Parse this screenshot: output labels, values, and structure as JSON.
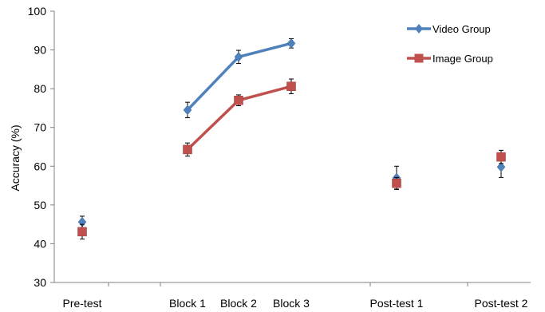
{
  "chart_data": {
    "type": "line",
    "title": "",
    "xlabel": "",
    "ylabel": "Accuracy (%)",
    "ylim": [
      30,
      100
    ],
    "yticks": [
      30,
      40,
      50,
      60,
      70,
      80,
      90,
      100
    ],
    "categories": [
      "Pre-test",
      "Block 1",
      "Block 2",
      "Block 3",
      "Post-test 1",
      "Post-test 2"
    ],
    "connected_categories": [
      "Block 1",
      "Block 2",
      "Block 3"
    ],
    "grid": false,
    "legend_position": "top-right",
    "series": [
      {
        "name": "Video Group",
        "color": "#4f81bd",
        "marker": "diamond",
        "values": [
          45.6,
          74.5,
          88.2,
          91.7,
          57.0,
          59.8
        ],
        "errors": [
          1.5,
          2.0,
          1.7,
          1.2,
          3.0,
          2.7
        ]
      },
      {
        "name": "Image Group",
        "color": "#c0504d",
        "marker": "square",
        "values": [
          43.1,
          64.3,
          77.0,
          80.6,
          55.6,
          62.4
        ],
        "errors": [
          1.9,
          1.7,
          1.4,
          1.9,
          1.5,
          1.7
        ]
      }
    ]
  }
}
